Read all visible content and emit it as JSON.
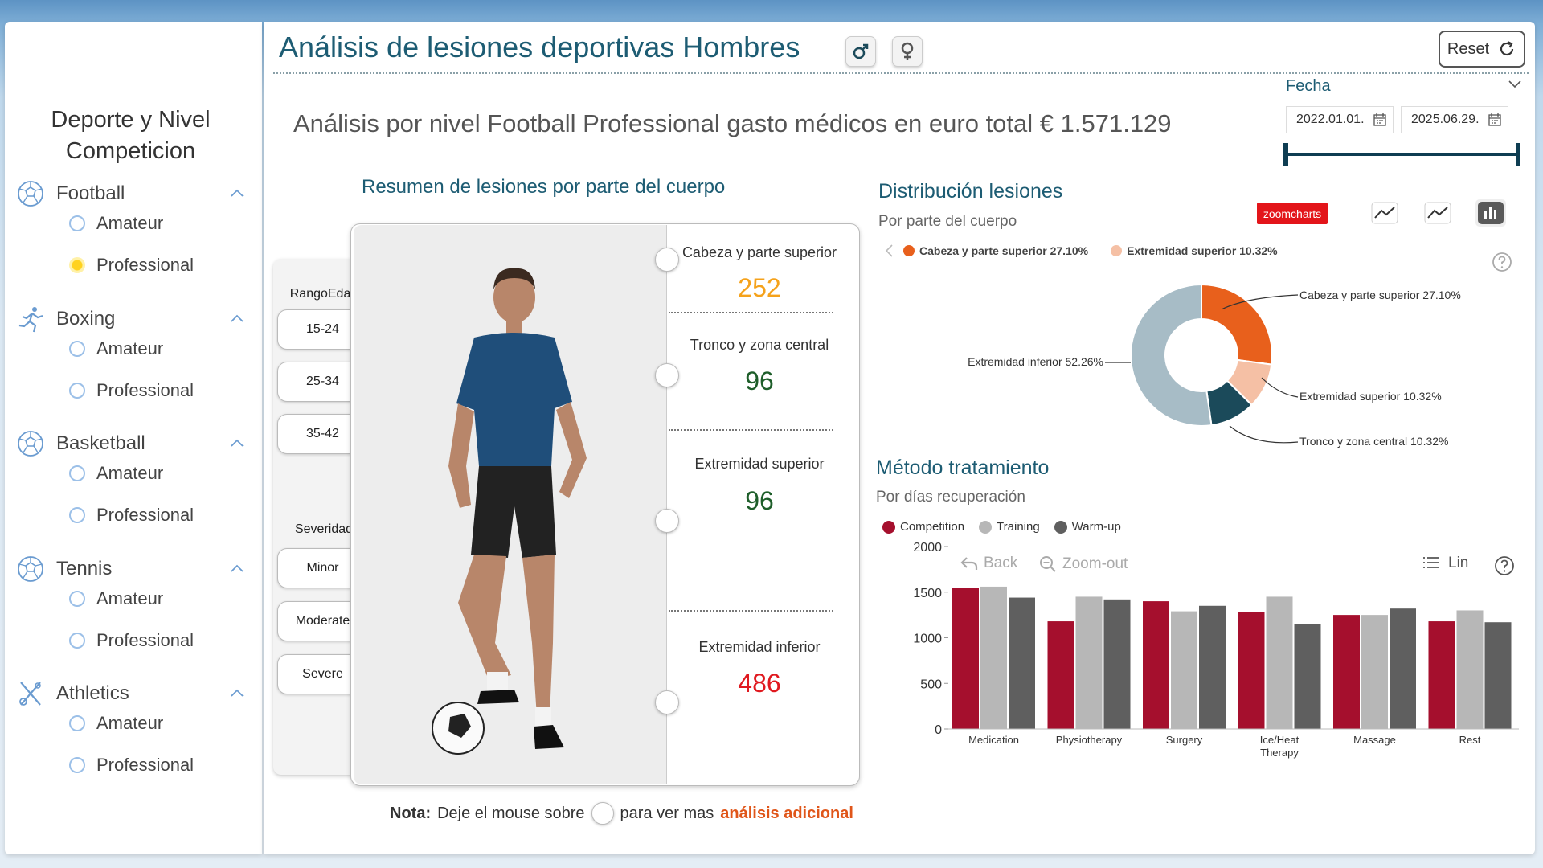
{
  "sidebar": {
    "title_line1": "Deporte y Nivel",
    "title_line2": "Competicion",
    "sports": [
      {
        "name": "Football",
        "icon": "soccer-ball-icon",
        "levels": [
          {
            "label": "Amateur",
            "selected": false
          },
          {
            "label": "Professional",
            "selected": true
          }
        ]
      },
      {
        "name": "Boxing",
        "icon": "runner-icon",
        "levels": [
          {
            "label": "Amateur",
            "selected": false
          },
          {
            "label": "Professional",
            "selected": false
          }
        ]
      },
      {
        "name": "Basketball",
        "icon": "ball-icon",
        "levels": [
          {
            "label": "Amateur",
            "selected": false
          },
          {
            "label": "Professional",
            "selected": false
          }
        ]
      },
      {
        "name": "Tennis",
        "icon": "ball-icon",
        "levels": [
          {
            "label": "Amateur",
            "selected": false
          },
          {
            "label": "Professional",
            "selected": false
          }
        ]
      },
      {
        "name": "Athletics",
        "icon": "crossed-sticks-icon",
        "levels": [
          {
            "label": "Amateur",
            "selected": false
          },
          {
            "label": "Professional",
            "selected": false
          }
        ]
      }
    ]
  },
  "header": {
    "title": "Análisis de lesiones deportivas Hombres",
    "reset_label": "Reset",
    "male_icon": "male-symbol-icon",
    "female_icon": "female-symbol-icon"
  },
  "date_filter": {
    "label": "Fecha",
    "start": "2022.01.01.",
    "end": "2025.06.29."
  },
  "subheader": "Análisis por nivel Football Professional gasto médicos en euro total € 1.571.129",
  "body_summary": {
    "title": "Resumen de lesiones por parte del cuerpo",
    "filters": {
      "age_title": "RangoEdad",
      "ages": [
        "15-24",
        "25-34",
        "35-42"
      ],
      "severity_title": "Severidad",
      "severities": [
        "Minor",
        "Moderate",
        "Severe"
      ]
    },
    "parts": [
      {
        "label": "Cabeza y parte superior",
        "value": "252",
        "color": "#f5a21b"
      },
      {
        "label": "Tronco y zona central",
        "value": "96",
        "color": "#1e5e2a"
      },
      {
        "label": "Extremidad superior",
        "value": "96",
        "color": "#1e5e2a"
      },
      {
        "label": "Extremidad inferior",
        "value": "486",
        "color": "#e0191f"
      }
    ],
    "note": {
      "bold": "Nota:",
      "text1": "Deje el mouse sobre",
      "text2": "para ver mas",
      "highlight": "análisis adicional"
    }
  },
  "distribution": {
    "title": "Distribución lesiones",
    "subtitle": "Por parte del cuerpo",
    "logo_text": "zoomcharts",
    "legend": [
      {
        "label": "Cabeza y parte superior 27.10%",
        "color": "#e8601c"
      },
      {
        "label": "Extremidad superior 10.32%",
        "color": "#f5c0a5"
      }
    ],
    "slice_labels": {
      "head": "Cabeza y parte superior 27.10%",
      "upper": "Extremidad superior 10.32%",
      "trunk": "Tronco y zona central 10.32%",
      "lower": "Extremidad inferior 52.26%"
    }
  },
  "method": {
    "title": "Método tratamiento",
    "subtitle": "Por días recuperación",
    "back_label": "Back",
    "zoom_label": "Zoom-out",
    "lin_label": "Lin"
  },
  "chart_data": [
    {
      "type": "pie",
      "slices": [
        {
          "name": "Cabeza y parte superior",
          "value": 27.1,
          "color": "#e8601c"
        },
        {
          "name": "Extremidad superior",
          "value": 10.32,
          "color": "#f5c0a5"
        },
        {
          "name": "Tronco y zona central",
          "value": 10.32,
          "color": "#1b4a5a"
        },
        {
          "name": "Extremidad inferior",
          "value": 52.26,
          "color": "#a7bcc6"
        }
      ]
    },
    {
      "type": "bar",
      "categories": [
        "Medication",
        "Physiotherapy",
        "Surgery",
        "Ice/Heat Therapy",
        "Massage",
        "Rest"
      ],
      "series": [
        {
          "name": "Competition",
          "color": "#a50f2d",
          "values": [
            1550,
            1180,
            1400,
            1280,
            1250,
            1180
          ]
        },
        {
          "name": "Training",
          "color": "#b7b7b7",
          "values": [
            1560,
            1450,
            1290,
            1450,
            1250,
            1300
          ]
        },
        {
          "name": "Warm-up",
          "color": "#5f5f5f",
          "values": [
            1440,
            1420,
            1350,
            1150,
            1320,
            1170
          ]
        }
      ],
      "yticks": [
        "0",
        "500",
        "1000",
        "1500",
        "2000"
      ],
      "ylim": [
        0,
        2000
      ]
    }
  ]
}
